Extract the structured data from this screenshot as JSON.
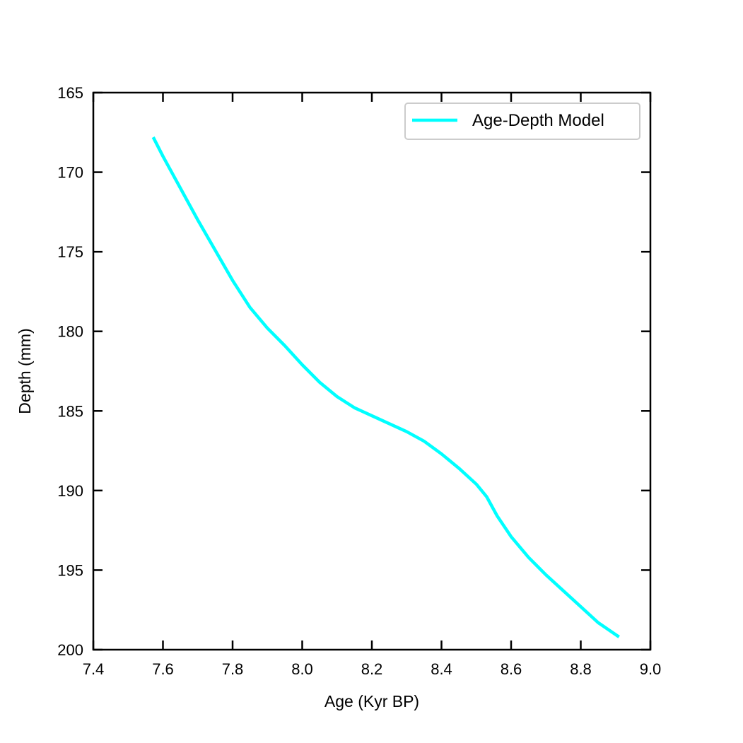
{
  "chart_data": {
    "type": "line",
    "xlabel": "Age (Kyr BP)",
    "ylabel": "Depth (mm)",
    "xlim": [
      7.4,
      9.0
    ],
    "ylim": [
      165,
      200
    ],
    "y_inverted": true,
    "xticks": [
      "7.4",
      "7.6",
      "7.8",
      "8.0",
      "8.2",
      "8.4",
      "8.6",
      "8.8",
      "9.0"
    ],
    "yticks": [
      "165",
      "170",
      "175",
      "180",
      "185",
      "190",
      "195",
      "200"
    ],
    "grid": false,
    "legend_position": "top-right",
    "colors": {
      "series": "#00ffff",
      "axes": "#000000",
      "legend_border": "#cccccc"
    },
    "series": [
      {
        "name": "Age-Depth Model",
        "points": [
          [
            7.572,
            167.8
          ],
          [
            7.6,
            169.0
          ],
          [
            7.65,
            171.0
          ],
          [
            7.7,
            173.0
          ],
          [
            7.75,
            174.9
          ],
          [
            7.8,
            176.8
          ],
          [
            7.85,
            178.5
          ],
          [
            7.9,
            179.8
          ],
          [
            7.95,
            180.9
          ],
          [
            8.0,
            182.1
          ],
          [
            8.05,
            183.2
          ],
          [
            8.1,
            184.1
          ],
          [
            8.15,
            184.8
          ],
          [
            8.2,
            185.3
          ],
          [
            8.25,
            185.8
          ],
          [
            8.3,
            186.3
          ],
          [
            8.35,
            186.9
          ],
          [
            8.4,
            187.7
          ],
          [
            8.45,
            188.6
          ],
          [
            8.5,
            189.6
          ],
          [
            8.53,
            190.4
          ],
          [
            8.56,
            191.6
          ],
          [
            8.6,
            192.9
          ],
          [
            8.65,
            194.2
          ],
          [
            8.7,
            195.3
          ],
          [
            8.75,
            196.3
          ],
          [
            8.8,
            197.3
          ],
          [
            8.85,
            198.3
          ],
          [
            8.91,
            199.2
          ]
        ]
      }
    ]
  }
}
